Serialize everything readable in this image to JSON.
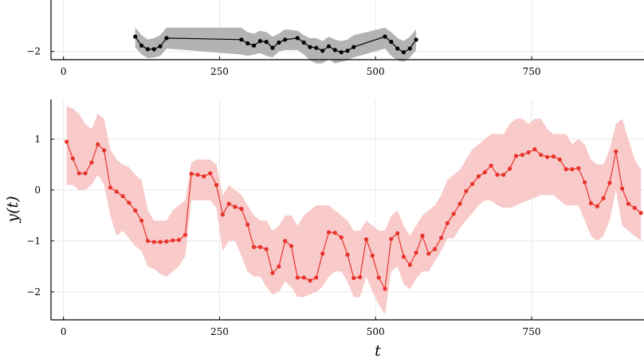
{
  "chart_data": [
    {
      "type": "line",
      "panel": "top",
      "partially_visible": true,
      "xlim": [
        -20,
        930
      ],
      "ylim": [
        -2.55,
        2.0
      ],
      "x_ticks": [
        0,
        250,
        500,
        750
      ],
      "x_tick_labels": [
        "0",
        "250",
        "500",
        "750"
      ],
      "y_ticks": [
        -2
      ],
      "y_tick_labels": [
        "−2"
      ],
      "grid": true,
      "colors": {
        "line": "#000000",
        "band": "#b3b3b3"
      },
      "series": [
        {
          "x": [
            115,
            125,
            135,
            145,
            155,
            165,
            285,
            295,
            305,
            315,
            325,
            335,
            345,
            355,
            375,
            385,
            395,
            405,
            415,
            425,
            435,
            445,
            455,
            465,
            515,
            525,
            535,
            545,
            555,
            565
          ],
          "y": [
            -1.0,
            -1.6,
            -1.85,
            -1.85,
            -1.65,
            -1.1,
            -1.2,
            -1.45,
            -1.6,
            -1.3,
            -1.35,
            -1.75,
            -1.4,
            -1.2,
            -1.1,
            -1.4,
            -1.7,
            -1.75,
            -1.95,
            -1.65,
            -1.9,
            -2.05,
            -1.95,
            -1.7,
            -1.0,
            -1.35,
            -1.8,
            -2.05,
            -1.8,
            -1.2
          ],
          "band_upper": [
            -0.4,
            -0.9,
            -1.2,
            -1.1,
            -0.9,
            -0.4,
            -0.4,
            -0.7,
            -0.8,
            -0.6,
            -0.7,
            -1.0,
            -0.8,
            -0.5,
            -0.6,
            -0.9,
            -1.1,
            -1.1,
            -1.3,
            -1.0,
            -1.2,
            -1.3,
            -1.2,
            -0.9,
            -0.4,
            -0.7,
            -1.1,
            -1.3,
            -1.0,
            -0.5
          ],
          "band_lower": [
            -1.7,
            -2.2,
            -2.45,
            -2.4,
            -2.3,
            -1.8,
            -2.2,
            -2.3,
            -2.2,
            -2.1,
            -2.3,
            -2.4,
            -2.0,
            -1.9,
            -1.9,
            -2.2,
            -2.6,
            -2.8,
            -2.8,
            -2.5,
            -2.8,
            -2.7,
            -2.6,
            -2.4,
            -1.8,
            -2.3,
            -2.6,
            -2.7,
            -2.4,
            -1.9
          ]
        }
      ]
    },
    {
      "type": "line",
      "panel": "bottom",
      "xlim": [
        -20,
        930
      ],
      "ylim": [
        -2.55,
        1.78
      ],
      "x_ticks": [
        0,
        250,
        500,
        750
      ],
      "x_tick_labels": [
        "0",
        "250",
        "500",
        "750"
      ],
      "y_ticks": [
        1,
        0,
        -1,
        -2
      ],
      "y_tick_labels": [
        "1",
        "0",
        "−1",
        "−2"
      ],
      "xlabel": "t",
      "ylabel": "y(t)",
      "grid": true,
      "colors": {
        "line": "#e8332a",
        "band": "#f8caca"
      },
      "series": [
        {
          "x": [
            5,
            15,
            25,
            35,
            45,
            55,
            65,
            75,
            85,
            95,
            105,
            115,
            125,
            135,
            145,
            155,
            165,
            175,
            185,
            195,
            205,
            215,
            225,
            235,
            245,
            255,
            265,
            275,
            285,
            295,
            305,
            315,
            325,
            335,
            345,
            355,
            365,
            375,
            385,
            395,
            405,
            415,
            425,
            435,
            445,
            455,
            465,
            475,
            485,
            495,
            505,
            515,
            525,
            535,
            545,
            555,
            565,
            575,
            585,
            595,
            605,
            615,
            625,
            635,
            645,
            655,
            665,
            675,
            685,
            695,
            705,
            715,
            725,
            735,
            745,
            755,
            765,
            775,
            785,
            795,
            805,
            815,
            825,
            835,
            845,
            855,
            865,
            875,
            885,
            895,
            905,
            915,
            925
          ],
          "y": [
            0.95,
            0.62,
            0.33,
            0.33,
            0.54,
            0.9,
            0.78,
            0.05,
            -0.03,
            -0.12,
            -0.25,
            -0.4,
            -0.6,
            -1.0,
            -1.02,
            -1.02,
            -1.01,
            -0.99,
            -0.98,
            -0.88,
            0.32,
            0.3,
            0.27,
            0.33,
            0.1,
            -0.48,
            -0.27,
            -0.33,
            -0.37,
            -0.68,
            -1.12,
            -1.12,
            -1.16,
            -1.63,
            -1.5,
            -1.0,
            -1.1,
            -1.72,
            -1.72,
            -1.78,
            -1.72,
            -1.25,
            -0.83,
            -0.84,
            -0.93,
            -1.27,
            -1.73,
            -1.71,
            -0.97,
            -1.29,
            -1.72,
            -1.94,
            -0.96,
            -0.85,
            -1.31,
            -1.47,
            -1.23,
            -0.9,
            -1.25,
            -1.16,
            -0.94,
            -0.65,
            -0.47,
            -0.27,
            -0.02,
            0.12,
            0.27,
            0.35,
            0.48,
            0.3,
            0.3,
            0.42,
            0.67,
            0.69,
            0.74,
            0.8,
            0.69,
            0.65,
            0.66,
            0.6,
            0.41,
            0.41,
            0.43,
            0.15,
            -0.26,
            -0.32,
            -0.16,
            0.14,
            0.76,
            0.03,
            -0.27,
            -0.35,
            -0.45
          ],
          "band_upper": [
            1.65,
            1.6,
            1.5,
            1.3,
            1.2,
            1.5,
            1.4,
            0.8,
            0.6,
            0.5,
            0.45,
            0.3,
            0.2,
            -0.4,
            -0.6,
            -0.6,
            -0.6,
            -0.4,
            -0.3,
            -0.2,
            0.55,
            0.6,
            0.6,
            0.6,
            0.5,
            -0.1,
            0.1,
            0.0,
            -0.1,
            -0.3,
            -0.5,
            -0.6,
            -0.6,
            -0.8,
            -0.7,
            -0.5,
            -0.5,
            -0.7,
            -0.5,
            -0.4,
            -0.3,
            -0.3,
            -0.3,
            -0.4,
            -0.5,
            -0.6,
            -0.8,
            -0.8,
            -0.6,
            -0.7,
            -0.8,
            -0.8,
            -0.5,
            -0.4,
            -0.7,
            -0.9,
            -0.7,
            -0.5,
            -0.4,
            -0.3,
            -0.1,
            0.2,
            0.3,
            0.4,
            0.6,
            0.8,
            0.9,
            1.0,
            1.1,
            1.1,
            1.1,
            1.3,
            1.4,
            1.4,
            1.3,
            1.4,
            1.4,
            1.2,
            1.1,
            1.1,
            1.1,
            0.9,
            1.0,
            0.9,
            0.6,
            0.5,
            0.5,
            0.8,
            1.3,
            1.4,
            1.0,
            0.6,
            0.4
          ],
          "band_lower": [
            0.1,
            0.1,
            0.0,
            0.0,
            0.1,
            0.3,
            0.1,
            -0.5,
            -0.9,
            -0.8,
            -0.95,
            -1.1,
            -1.2,
            -1.5,
            -1.55,
            -1.65,
            -1.7,
            -1.6,
            -1.5,
            -1.3,
            -0.2,
            -0.2,
            -0.2,
            -0.2,
            -0.35,
            -1.2,
            -1.0,
            -1.0,
            -1.3,
            -1.6,
            -1.7,
            -1.7,
            -1.9,
            -2.05,
            -2.0,
            -1.8,
            -1.9,
            -2.1,
            -2.1,
            -2.05,
            -2.0,
            -1.9,
            -1.7,
            -1.6,
            -1.6,
            -1.8,
            -2.1,
            -2.1,
            -1.7,
            -2.0,
            -2.25,
            -2.45,
            -1.6,
            -1.5,
            -1.85,
            -1.95,
            -1.75,
            -1.6,
            -1.6,
            -1.4,
            -1.2,
            -0.95,
            -0.95,
            -0.75,
            -0.6,
            -0.45,
            -0.3,
            -0.2,
            -0.2,
            -0.3,
            -0.35,
            -0.35,
            -0.3,
            -0.25,
            -0.2,
            -0.15,
            -0.1,
            -0.1,
            -0.1,
            -0.2,
            -0.3,
            -0.3,
            -0.3,
            -0.6,
            -0.9,
            -1.0,
            -0.9,
            -0.6,
            0.0,
            -0.7,
            -0.8,
            -0.9,
            -1.0
          ]
        }
      ]
    }
  ]
}
